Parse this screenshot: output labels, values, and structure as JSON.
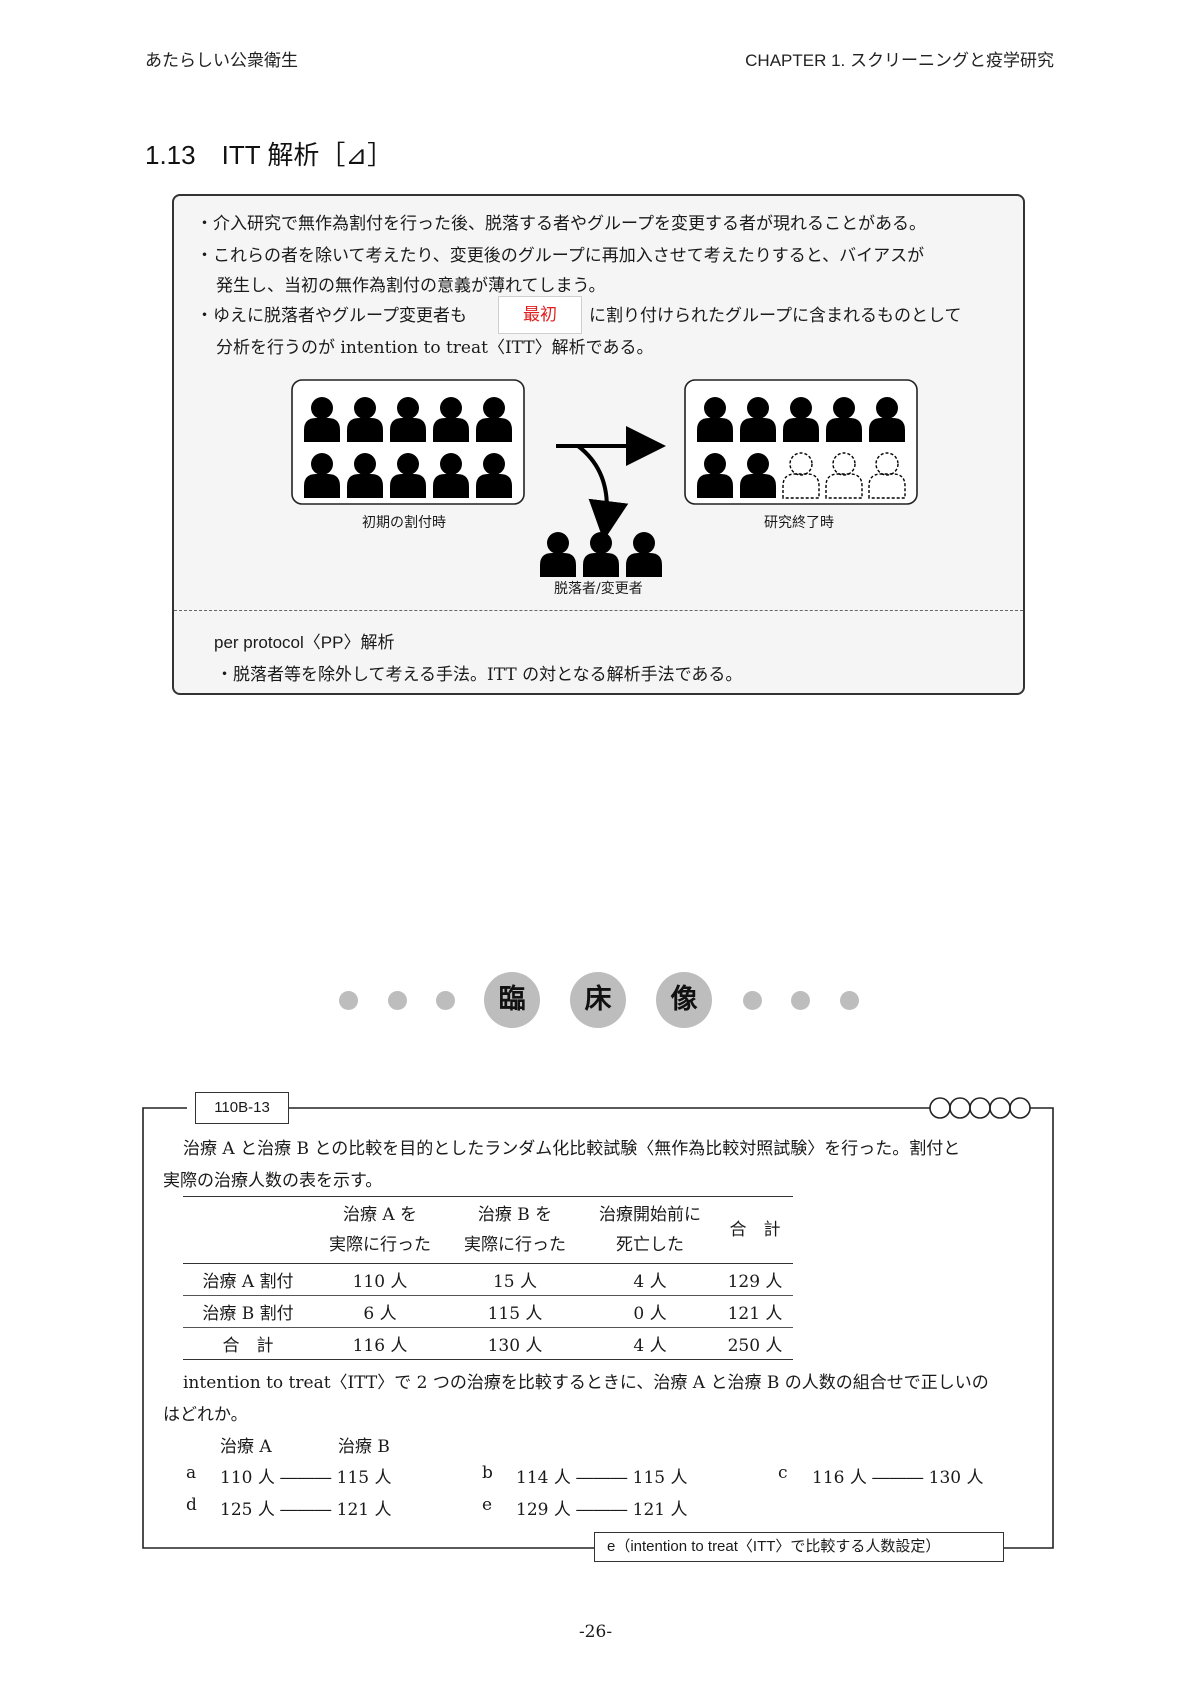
{
  "header": {
    "left": "あたらしい公衆衛生",
    "right": "CHAPTER  1.  スクリーニングと疫学研究"
  },
  "section": {
    "title": "1.13　ITT 解析［⊿］"
  },
  "summary": {
    "bullet1": "・介入研究で無作為割付を行った後、脱落する者やグループを変更する者が現れることがある。",
    "bullet2_line1": "・これらの者を除いて考えたり、変更後のグループに再加入させて考えたりすると、バイアスが",
    "bullet2_line2": "発生し、当初の無作為割付の意義が薄れてしまう。",
    "bullet3_pre": "・ゆえに脱落者やグループ変更者も",
    "bullet3_highlight": "最初",
    "bullet3_post": "に割り付けられたグループに含まれるものとして",
    "bullet3_line2": "分析を行うのが intention to treat〈ITT〉解析である。",
    "diagram": {
      "caption_initial": "初期の割付時",
      "caption_end": "研究終了時",
      "caption_dropout": "脱落者/変更者"
    },
    "pp_title": "per protocol〈PP〉解析",
    "pp_text": "・脱落者等を除外して考える手法。ITT の対となる解析手法である。"
  },
  "clinical_banner": {
    "chars": [
      "臨",
      "床",
      "像"
    ]
  },
  "question": {
    "id": "110B-13",
    "stem_line1": "治療 A と治療 B との比較を目的としたランダム化比較試験〈無作為比較対照試験〉を行った。割付と",
    "stem_line2": "実際の治療人数の表を示す。",
    "table": {
      "headers": [
        {
          "l1": "",
          "l2": ""
        },
        {
          "l1": "治療 A を",
          "l2": "実際に行った"
        },
        {
          "l1": "治療 B を",
          "l2": "実際に行った"
        },
        {
          "l1": "治療開始前に",
          "l2": "死亡した"
        },
        {
          "l1": "合　計",
          "l2": ""
        }
      ],
      "rows": [
        [
          "治療 A 割付",
          "110 人",
          "15 人",
          "4 人",
          "129 人"
        ],
        [
          "治療 B 割付",
          "6 人",
          "115 人",
          "0 人",
          "121 人"
        ],
        [
          "合　計",
          "116 人",
          "130 人",
          "4 人",
          "250 人"
        ]
      ]
    },
    "prompt_line1": "intention to treat〈ITT〉で 2 つの治療を比較するときに、治療 A と治療 B の人数の組合せで正しいの",
    "prompt_line2": "はどれか。",
    "col_a": "治療 A",
    "col_b": "治療 B",
    "options": [
      {
        "letter": "a",
        "text": "110 人 ――― 115 人"
      },
      {
        "letter": "b",
        "text": "114 人 ――― 115 人"
      },
      {
        "letter": "c",
        "text": "116 人 ――― 130 人"
      },
      {
        "letter": "d",
        "text": "125 人 ――― 121 人"
      },
      {
        "letter": "e",
        "text": "129 人 ――― 121 人"
      }
    ],
    "answer": "e（intention to treat〈ITT〉で比較する人数設定）"
  },
  "page_number": "-26-"
}
